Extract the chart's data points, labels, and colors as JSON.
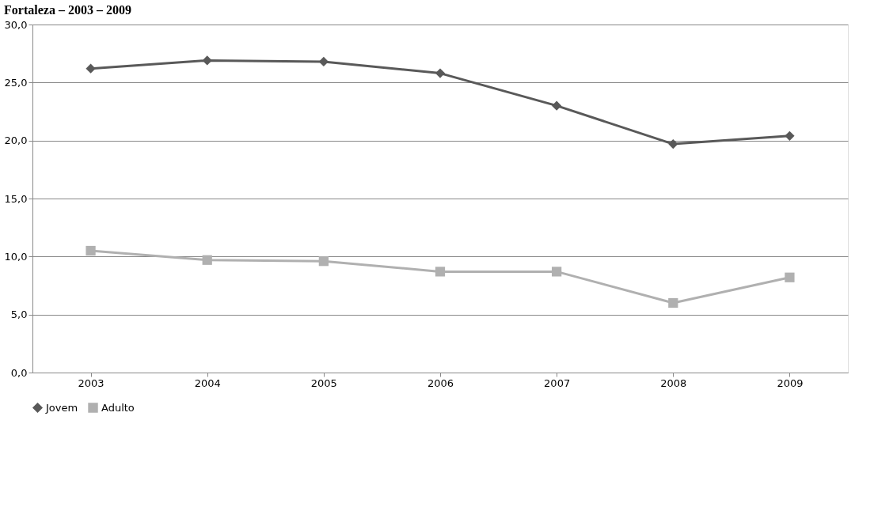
{
  "chart_data": {
    "type": "line",
    "title": "Fortaleza – 2003 – 2009",
    "categories": [
      "2003",
      "2004",
      "2005",
      "2006",
      "2007",
      "2008",
      "2009"
    ],
    "series": [
      {
        "name": "Jovem",
        "color": "#595959",
        "marker": "diamond",
        "values": [
          26.2,
          26.9,
          26.8,
          25.8,
          23.0,
          19.7,
          20.4
        ]
      },
      {
        "name": "Adulto",
        "color": "#b0b0b0",
        "marker": "square",
        "values": [
          10.5,
          9.7,
          9.6,
          8.7,
          8.7,
          6.0,
          8.2
        ]
      }
    ],
    "ylim": [
      0,
      30
    ],
    "yticks": [
      {
        "value": 0,
        "label": "0,0"
      },
      {
        "value": 5,
        "label": "5,0"
      },
      {
        "value": 10,
        "label": "10,0"
      },
      {
        "value": 15,
        "label": "15,0"
      },
      {
        "value": 20,
        "label": "20,0"
      },
      {
        "value": 25,
        "label": "25,0"
      },
      {
        "value": 30,
        "label": "30,0"
      }
    ],
    "grid": "y",
    "legend": "bottom",
    "line_style": "solid"
  }
}
